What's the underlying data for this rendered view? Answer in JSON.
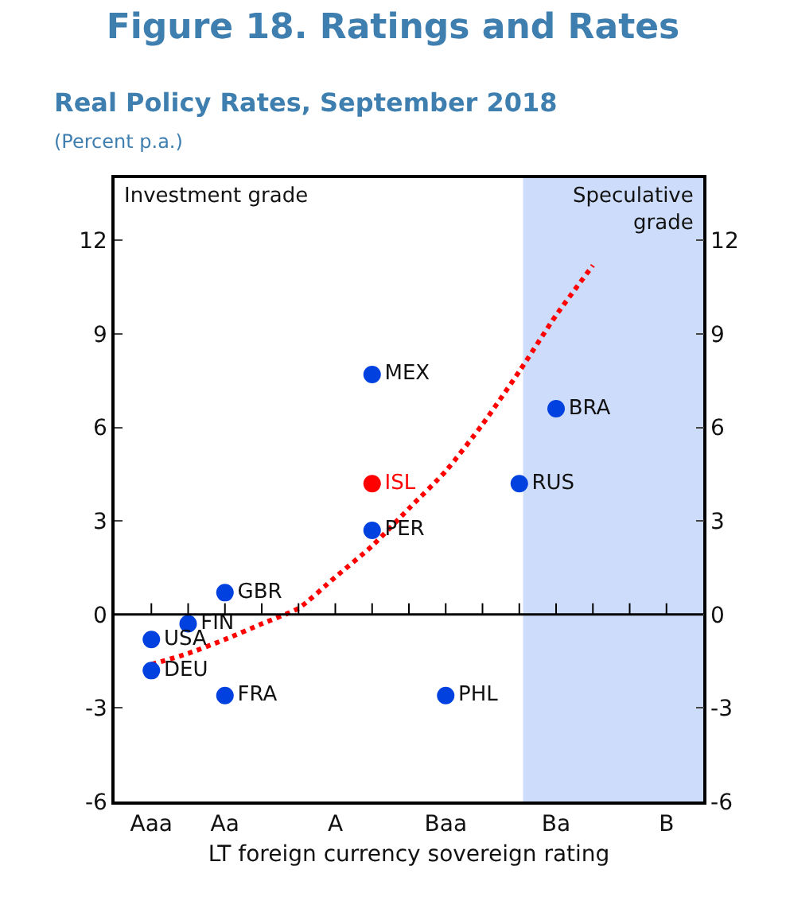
{
  "chart_data": {
    "type": "scatter",
    "title": "Figure 18. Ratings and Rates",
    "subtitle": "Real Policy Rates, September 2018",
    "ylabel": "(Percent p.a.)",
    "xlabel": "LT foreign currency sovereign rating",
    "annotations": [
      "Investment grade",
      "Speculative\ngrade"
    ],
    "categories": [
      "Aaa",
      null,
      "Aa",
      null,
      null,
      "A",
      null,
      null,
      "Baa",
      null,
      null,
      "Ba",
      null,
      null,
      "B",
      null
    ],
    "ylim": [
      -6,
      14
    ],
    "yticks": [
      -6,
      -3,
      0,
      3,
      6,
      9,
      12
    ],
    "y2lim": [
      -6,
      14
    ],
    "y2ticks": [
      -6,
      -3,
      0,
      3,
      6,
      9,
      12
    ],
    "grid": false,
    "marker": "circle",
    "ref_lines": [
      {
        "axis": "y",
        "value": 0,
        "color": "#000000"
      }
    ],
    "series": [
      {
        "type": "line",
        "line_style": "dotted",
        "marker": "none",
        "color": "#ff0000",
        "values": [
          -1.6,
          -1.25,
          -0.8,
          -0.3,
          0.2,
          1.2,
          2.2,
          3.4,
          4.6,
          6.1,
          7.8,
          9.6,
          11.2,
          null,
          null,
          null
        ]
      },
      {
        "color": "#0041e0",
        "values": [
          -0.8,
          -0.3,
          0.7,
          null,
          null,
          null,
          7.7,
          null,
          -2.6,
          null,
          4.2,
          6.6,
          null,
          null,
          null,
          null
        ],
        "value_labels": [
          "USA",
          "FIN",
          "GBR",
          null,
          null,
          null,
          "MEX",
          null,
          "PHL",
          null,
          "RUS",
          "BRA",
          null,
          null,
          null,
          null
        ]
      },
      {
        "color": "#0041e0",
        "colors": [
          "#0041e0",
          "#0041e0",
          "#0041e0",
          "#0041e0",
          "#0041e0",
          "#0041e0",
          "#ff0000",
          "#0041e0",
          "#0041e0",
          "#0041e0",
          "#0041e0",
          "#0041e0",
          "#0041e0",
          "#0041e0",
          "#0041e0",
          "#0041e0"
        ],
        "values": [
          -1.8,
          null,
          -2.6,
          null,
          null,
          null,
          4.2,
          null,
          null,
          null,
          null,
          null,
          null,
          null,
          null,
          null
        ],
        "value_labels": [
          "DEU",
          null,
          "FRA",
          null,
          null,
          null,
          "ISL",
          null,
          null,
          null,
          null,
          null,
          null,
          null,
          null,
          null
        ]
      },
      {
        "color": "#0041e0",
        "values": [
          null,
          null,
          null,
          null,
          null,
          null,
          2.7,
          null,
          null,
          null,
          null,
          null,
          null,
          null,
          null,
          null
        ],
        "value_labels": [
          null,
          null,
          null,
          null,
          null,
          null,
          "PER",
          null,
          null,
          null,
          null,
          null,
          null,
          null,
          null,
          null
        ]
      }
    ]
  }
}
